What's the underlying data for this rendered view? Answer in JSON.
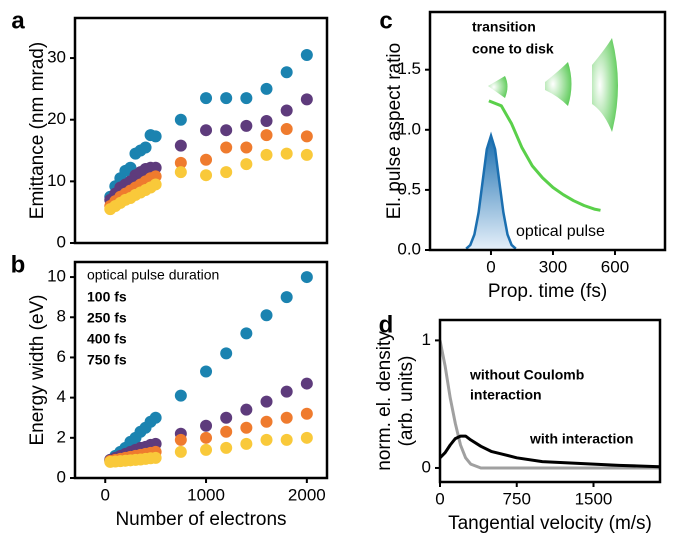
{
  "chart_data": [
    {
      "type": "scatter",
      "label": "a",
      "ylabel": "Emittance (nm mrad)",
      "x": [
        50,
        100,
        150,
        200,
        250,
        300,
        350,
        400,
        450,
        500,
        750,
        1000,
        1200,
        1400,
        1600,
        1800,
        2000
      ],
      "xlim": [
        -300,
        2200
      ],
      "ylim": [
        0,
        36.5
      ],
      "yticks": [
        0,
        10,
        20,
        30
      ],
      "series": [
        {
          "name": "100 fs",
          "color": "#1b83b0",
          "values": [
            7.5,
            9.2,
            10.5,
            11.7,
            12.2,
            14.5,
            15,
            15.5,
            17.5,
            17.3,
            20,
            23.5,
            23.5,
            23.5,
            25,
            27.7,
            30.5
          ]
        },
        {
          "name": "250 fs",
          "color": "#5e3b7c",
          "values": [
            7,
            8,
            9,
            9.5,
            10,
            11,
            11.5,
            12,
            12.2,
            12.2,
            15.8,
            18.3,
            18.3,
            19,
            19.8,
            21.5,
            23.3
          ]
        },
        {
          "name": "400 fs",
          "color": "#ef7b2e",
          "values": [
            6,
            6.8,
            7.5,
            8,
            8.5,
            9,
            9.5,
            10,
            10.5,
            10.8,
            13,
            13.5,
            15.5,
            15.5,
            17.5,
            18.5,
            17.3
          ]
        },
        {
          "name": "750 fs",
          "color": "#f9c93a",
          "values": [
            5.5,
            6,
            6.5,
            7,
            7.3,
            7.8,
            8.2,
            8.6,
            9,
            9.5,
            11.5,
            11,
            11.5,
            12.8,
            14.3,
            14.5,
            14.3
          ]
        }
      ]
    },
    {
      "type": "scatter",
      "label": "b",
      "ylabel": "Energy width (eV)",
      "xlabel": "Number of electrons",
      "legend_title": "optical pulse duration",
      "x": [
        50,
        100,
        150,
        200,
        250,
        300,
        350,
        400,
        450,
        500,
        750,
        1000,
        1200,
        1400,
        1600,
        1800,
        2000
      ],
      "xlim": [
        -300,
        2200
      ],
      "xticks": [
        0,
        1000,
        2000
      ],
      "ylim": [
        0,
        10.75
      ],
      "yticks": [
        0,
        2,
        4,
        6,
        8,
        10
      ],
      "series": [
        {
          "name": "100 fs",
          "color": "#1b83b0",
          "values": [
            0.9,
            1.1,
            1.3,
            1.5,
            1.8,
            2.0,
            2.3,
            2.5,
            2.8,
            3.0,
            4.1,
            5.3,
            6.2,
            7.2,
            8.1,
            9.0,
            10.0
          ]
        },
        {
          "name": "250 fs",
          "color": "#5e3b7c",
          "values": [
            0.9,
            1.0,
            1.1,
            1.2,
            1.3,
            1.4,
            1.5,
            1.55,
            1.65,
            1.7,
            2.2,
            2.6,
            3.0,
            3.4,
            3.8,
            4.3,
            4.7
          ]
        },
        {
          "name": "400 fs",
          "color": "#ef7b2e",
          "values": [
            0.85,
            0.9,
            0.95,
            1.0,
            1.05,
            1.1,
            1.15,
            1.2,
            1.25,
            1.3,
            1.9,
            2.0,
            2.3,
            2.5,
            2.8,
            3.0,
            3.2
          ]
        },
        {
          "name": "750 fs",
          "color": "#f9c93a",
          "values": [
            0.8,
            0.82,
            0.84,
            0.86,
            0.88,
            0.9,
            0.92,
            0.95,
            0.98,
            1.0,
            1.3,
            1.4,
            1.5,
            1.7,
            1.9,
            1.9,
            2.0
          ]
        }
      ]
    },
    {
      "type": "line",
      "label": "c",
      "ylabel": "El. pulse aspect ratio",
      "xlabel": "Prop. time (fs)",
      "annotation": [
        "transition",
        "cone to disk"
      ],
      "xlim": [
        -295,
        842
      ],
      "xticks": [
        0,
        300,
        600
      ],
      "ylim": [
        0,
        1.98
      ],
      "yticks": [
        {
          "value": 0,
          "label": "0.0"
        },
        0.5,
        {
          "value": 1,
          "label": "1.0"
        },
        1.5
      ],
      "series": [
        {
          "color": "#5ad04a",
          "x": [
            -10,
            50,
            100,
            150,
            200,
            250,
            300,
            350,
            400,
            450,
            500,
            530
          ],
          "values": [
            1.24,
            1.2,
            1.05,
            0.85,
            0.7,
            0.6,
            0.52,
            0.46,
            0.41,
            0.37,
            0.34,
            0.33
          ]
        },
        {
          "name": "optical pulse",
          "color": "#1b6fb0",
          "kind": "area",
          "x": [
            -120,
            -100,
            -80,
            -60,
            -40,
            -20,
            0,
            20,
            40,
            60,
            80,
            100,
            120
          ],
          "values": [
            0.011,
            0.042,
            0.129,
            0.312,
            0.576,
            0.838,
            0.95,
            0.838,
            0.576,
            0.312,
            0.129,
            0.042,
            0.011
          ]
        }
      ]
    },
    {
      "type": "line",
      "label": "d",
      "ylabel": [
        "norm. el. density",
        "(arb. units)"
      ],
      "xlabel": "Tangential velocity (m/s)",
      "xlim": [
        0,
        2150
      ],
      "xticks": [
        0,
        750,
        1500
      ],
      "ylim": [
        -0.11,
        1.16
      ],
      "yticks": [
        0,
        1
      ],
      "series": [
        {
          "name": [
            "without Coulomb",
            "interaction"
          ],
          "color": "#a0a0a0",
          "x": [
            0,
            50,
            100,
            150,
            200,
            250,
            300,
            400,
            600,
            2150
          ],
          "values": [
            1.0,
            0.8,
            0.55,
            0.35,
            0.18,
            0.08,
            0.03,
            0.0,
            0.0,
            0.0
          ]
        },
        {
          "name": "with interaction",
          "color": "#000000",
          "x": [
            0,
            50,
            100,
            150,
            200,
            250,
            300,
            400,
            500,
            600,
            750,
            1000,
            1250,
            1500,
            1750,
            2150
          ],
          "values": [
            0.08,
            0.12,
            0.18,
            0.23,
            0.25,
            0.25,
            0.22,
            0.17,
            0.13,
            0.11,
            0.08,
            0.05,
            0.04,
            0.03,
            0.02,
            0.01
          ]
        }
      ]
    }
  ]
}
